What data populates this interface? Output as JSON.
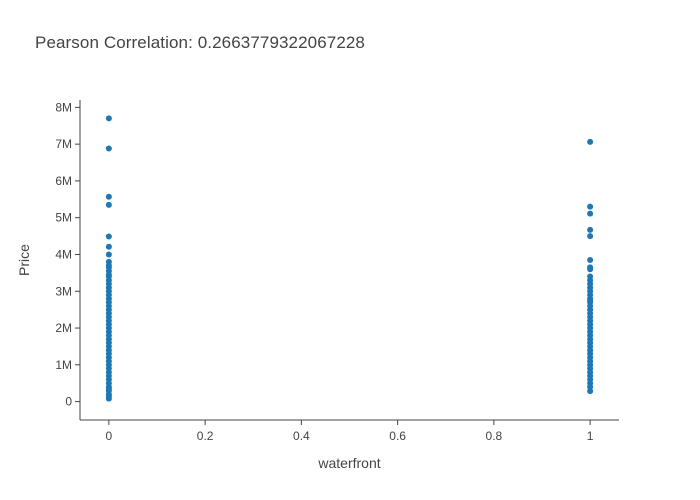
{
  "chart_data": {
    "type": "scatter",
    "title": "Pearson Correlation: 0.2663779322067228",
    "xlabel": "waterfront",
    "ylabel": "Price",
    "xlim": [
      -0.06,
      1.06
    ],
    "ylim": [
      -500000,
      8200000
    ],
    "x_ticks": [
      0,
      0.2,
      0.4,
      0.6,
      0.8,
      1
    ],
    "x_tick_labels": [
      "0",
      "0.2",
      "0.4",
      "0.6",
      "0.8",
      "1"
    ],
    "y_ticks": [
      0,
      1000000,
      2000000,
      3000000,
      4000000,
      5000000,
      6000000,
      7000000,
      8000000
    ],
    "y_tick_labels": [
      "0",
      "1M",
      "2M",
      "3M",
      "4M",
      "5M",
      "6M",
      "7M",
      "8M"
    ],
    "grid": false,
    "marker_color": "#1f77b4",
    "series": [
      {
        "x": [
          0,
          0,
          0,
          0,
          0,
          0,
          0,
          0,
          0,
          0,
          0,
          0,
          0,
          0,
          0,
          0,
          0,
          0,
          0,
          0,
          0,
          0,
          0,
          0,
          0,
          0,
          0,
          0,
          0,
          0,
          0,
          0,
          0,
          0,
          0,
          0,
          0,
          0,
          0,
          0,
          0,
          0,
          0,
          0,
          0,
          0,
          0,
          0
        ],
        "y": [
          7700000,
          6880000,
          5570000,
          5350000,
          4490000,
          4210000,
          4000000,
          3800000,
          3700000,
          3650000,
          3550000,
          3450000,
          3400000,
          3300000,
          3200000,
          3100000,
          3000000,
          2900000,
          2800000,
          2700000,
          2600000,
          2500000,
          2400000,
          2300000,
          2200000,
          2100000,
          2000000,
          1900000,
          1800000,
          1700000,
          1600000,
          1500000,
          1400000,
          1300000,
          1200000,
          1100000,
          1000000,
          900000,
          800000,
          700000,
          600000,
          500000,
          400000,
          350000,
          300000,
          200000,
          150000,
          80000
        ]
      },
      {
        "x": [
          1,
          1,
          1,
          1,
          1,
          1,
          1,
          1,
          1,
          1,
          1,
          1,
          1,
          1,
          1,
          1,
          1,
          1,
          1,
          1,
          1,
          1,
          1,
          1,
          1,
          1,
          1,
          1,
          1,
          1,
          1,
          1,
          1,
          1,
          1,
          1,
          1,
          1,
          1,
          1,
          1
        ],
        "y": [
          7060000,
          5300000,
          5110000,
          4670000,
          4500000,
          3850000,
          3650000,
          3600000,
          3400000,
          3300000,
          3200000,
          3100000,
          3000000,
          2900000,
          2800000,
          2750000,
          2700000,
          2600000,
          2500000,
          2400000,
          2300000,
          2200000,
          2100000,
          2000000,
          1900000,
          1800000,
          1700000,
          1600000,
          1500000,
          1400000,
          1300000,
          1200000,
          1100000,
          1000000,
          900000,
          800000,
          700000,
          600000,
          500000,
          400000,
          285000
        ]
      }
    ]
  }
}
